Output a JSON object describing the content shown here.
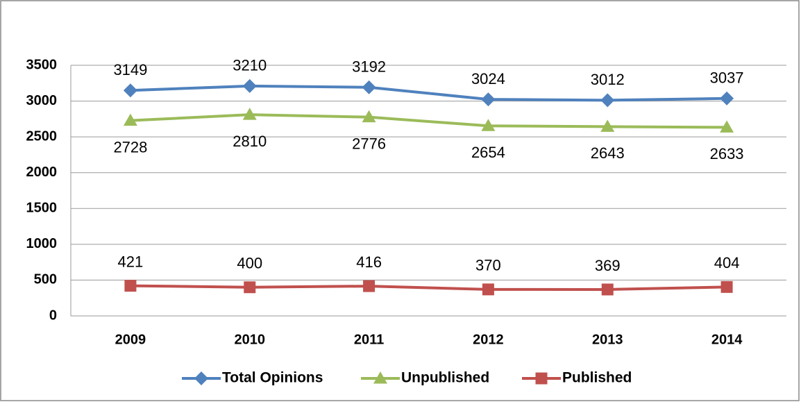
{
  "chart_data": {
    "type": "line",
    "categories": [
      "2009",
      "2010",
      "2011",
      "2012",
      "2013",
      "2014"
    ],
    "series": [
      {
        "name": "Total Opinions",
        "color": "#4f81bd",
        "marker": "diamond",
        "label_position": "above",
        "values": [
          3149,
          3210,
          3192,
          3024,
          3012,
          3037
        ]
      },
      {
        "name": "Unpublished",
        "color": "#9bbb59",
        "marker": "triangle",
        "label_position": "below",
        "values": [
          2728,
          2810,
          2776,
          2654,
          2643,
          2633
        ]
      },
      {
        "name": "Published",
        "color": "#c0504d",
        "marker": "square",
        "label_position": "above",
        "values": [
          421,
          400,
          416,
          370,
          369,
          404
        ]
      }
    ],
    "ylim": [
      0,
      3500
    ],
    "yticks": [
      0,
      500,
      1000,
      1500,
      2000,
      2500,
      3000,
      3500
    ],
    "grid": true,
    "legend": "bottom"
  }
}
